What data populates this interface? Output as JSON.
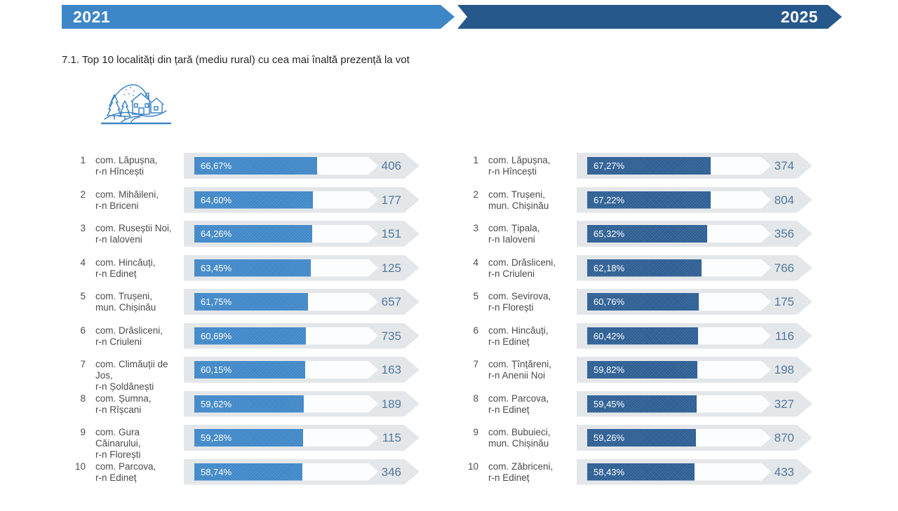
{
  "banners": {
    "left": {
      "label": "2021",
      "color": "#3d86c7"
    },
    "right": {
      "label": "2025",
      "color": "#27588c"
    }
  },
  "icon": {
    "name": "rural-village-icon",
    "color": "#3f87c5"
  },
  "chart_data": {
    "type": "bar",
    "title": "7.1. Top 10 localități din țară (mediu rural) cu cea mai înaltă prezență la vot",
    "bar_scale": [
      0,
      100
    ],
    "value_unit": "percent turnout (bar) and voter count (right number)",
    "columns": [
      {
        "year": "2021",
        "bar_color": "#3d86c7",
        "rows": [
          {
            "rank": "1",
            "locality": "com. Lăpușna,",
            "district": "r-n Hîncești",
            "percent_label": "66,67%",
            "percent": 66.67,
            "count": "406"
          },
          {
            "rank": "2",
            "locality": "com. Mihăileni,",
            "district": "r-n Briceni",
            "percent_label": "64,60%",
            "percent": 64.6,
            "count": "177"
          },
          {
            "rank": "3",
            "locality": "com. Ruseștii Noi,",
            "district": "r-n Ialoveni",
            "percent_label": "64,26%",
            "percent": 64.26,
            "count": "151"
          },
          {
            "rank": "4",
            "locality": "com. Hincăuți,",
            "district": "r-n Edineț",
            "percent_label": "63,45%",
            "percent": 63.45,
            "count": "125"
          },
          {
            "rank": "5",
            "locality": "com. Trușeni,",
            "district": "mun. Chișinău",
            "percent_label": "61,75%",
            "percent": 61.75,
            "count": "657"
          },
          {
            "rank": "6",
            "locality": "com. Drăsliceni,",
            "district": "r-n Criuleni",
            "percent_label": "60,69%",
            "percent": 60.69,
            "count": "735"
          },
          {
            "rank": "7",
            "locality": "com. Climăuții de Jos,",
            "district": "r-n Șoldănești",
            "percent_label": "60,15%",
            "percent": 60.15,
            "count": "163"
          },
          {
            "rank": "8",
            "locality": "com. Șumna,",
            "district": "r-n Rîșcani",
            "percent_label": "59,62%",
            "percent": 59.62,
            "count": "189"
          },
          {
            "rank": "9",
            "locality": "com. Gura Căinarului,",
            "district": "r-n Florești",
            "percent_label": "59,28%",
            "percent": 59.28,
            "count": "115"
          },
          {
            "rank": "10",
            "locality": "com. Parcova,",
            "district": "r-n Edineț",
            "percent_label": "58,74%",
            "percent": 58.74,
            "count": "346"
          }
        ]
      },
      {
        "year": "2025",
        "bar_color": "#2a5c92",
        "rows": [
          {
            "rank": "1",
            "locality": "com. Lăpușna,",
            "district": "r-n Hîncești",
            "percent_label": "67,27%",
            "percent": 67.27,
            "count": "374"
          },
          {
            "rank": "2",
            "locality": "com. Trușeni,",
            "district": "mun. Chișinău",
            "percent_label": "67,22%",
            "percent": 67.22,
            "count": "804"
          },
          {
            "rank": "3",
            "locality": "com. Țipala,",
            "district": "r-n Ialoveni",
            "percent_label": "65,32%",
            "percent": 65.32,
            "count": "356"
          },
          {
            "rank": "4",
            "locality": "com. Drăsliceni,",
            "district": "r-n Criuleni",
            "percent_label": "62,18%",
            "percent": 62.18,
            "count": "766"
          },
          {
            "rank": "5",
            "locality": "com. Sevirova,",
            "district": "r-n Florești",
            "percent_label": "60,76%",
            "percent": 60.76,
            "count": "175"
          },
          {
            "rank": "6",
            "locality": "com. Hincăuți,",
            "district": "r-n Edineț",
            "percent_label": "60,42%",
            "percent": 60.42,
            "count": "116"
          },
          {
            "rank": "7",
            "locality": "com. Țînțăreni,",
            "district": "r-n Anenii Noi",
            "percent_label": "59,82%",
            "percent": 59.82,
            "count": "198"
          },
          {
            "rank": "8",
            "locality": "com. Parcova,",
            "district": "r-n Edineț",
            "percent_label": "59,45%",
            "percent": 59.45,
            "count": "327"
          },
          {
            "rank": "9",
            "locality": "com. Bubuieci,",
            "district": "mun. Chișinău",
            "percent_label": "59,26%",
            "percent": 59.26,
            "count": "870"
          },
          {
            "rank": "10",
            "locality": "com. Zăbriceni,",
            "district": "r-n Edineț",
            "percent_label": "58,43%",
            "percent": 58.43,
            "count": "433"
          }
        ]
      }
    ]
  }
}
